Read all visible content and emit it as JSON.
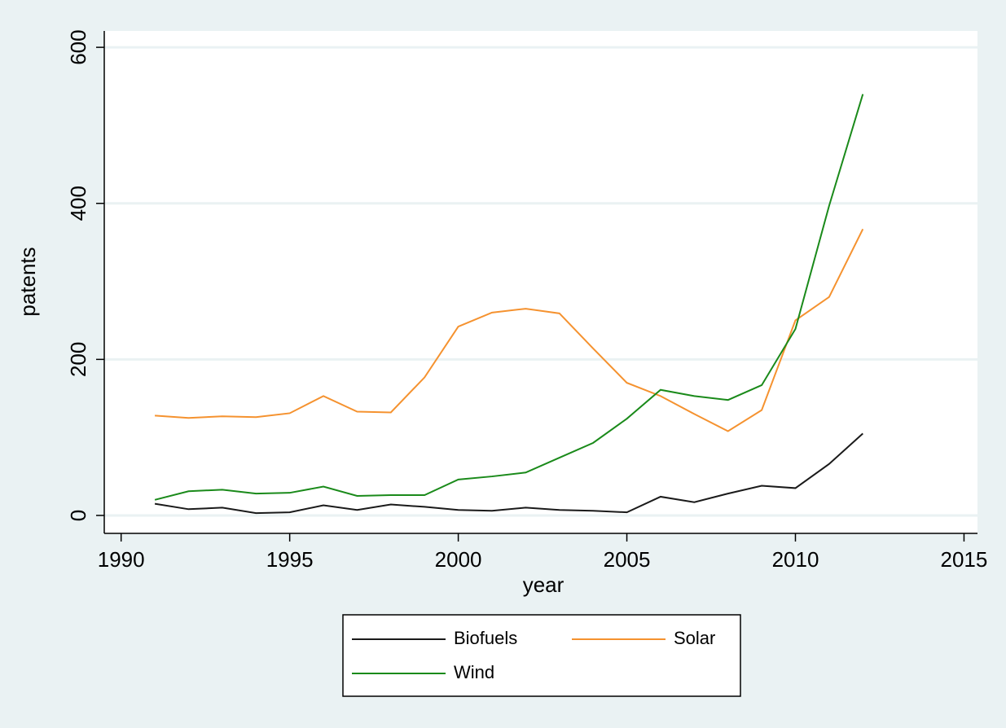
{
  "chart_data": {
    "type": "line",
    "x_label": "year",
    "y_label": "patents",
    "x": [
      1991,
      1992,
      1993,
      1994,
      1995,
      1996,
      1997,
      1998,
      1999,
      2000,
      2001,
      2002,
      2003,
      2004,
      2005,
      2006,
      2007,
      2008,
      2009,
      2010,
      2011,
      2012
    ],
    "series": [
      {
        "name": "Biofuels",
        "color": "#1a1a1a",
        "values": [
          15,
          8,
          10,
          3,
          4,
          13,
          7,
          14,
          11,
          7,
          6,
          10,
          7,
          6,
          4,
          24,
          17,
          28,
          38,
          35,
          66,
          105
        ]
      },
      {
        "name": "Solar",
        "color": "#f5922f",
        "values": [
          128,
          125,
          127,
          126,
          131,
          153,
          133,
          132,
          177,
          242,
          260,
          265,
          259,
          214,
          170,
          153,
          130,
          108,
          135,
          250,
          280,
          367
        ]
      },
      {
        "name": "Wind",
        "color": "#1a8a1a",
        "values": [
          20,
          31,
          33,
          28,
          29,
          37,
          25,
          26,
          26,
          46,
          50,
          55,
          74,
          93,
          124,
          161,
          153,
          148,
          167,
          239,
          397,
          540
        ]
      }
    ],
    "xlim": [
      1989.5,
      2015.4
    ],
    "xticks": [
      1990,
      1995,
      2000,
      2005,
      2010,
      2015
    ],
    "ylim": [
      -23,
      621
    ],
    "yticks": [
      0,
      200,
      400,
      600
    ],
    "grid": true,
    "legend": "bottom"
  }
}
